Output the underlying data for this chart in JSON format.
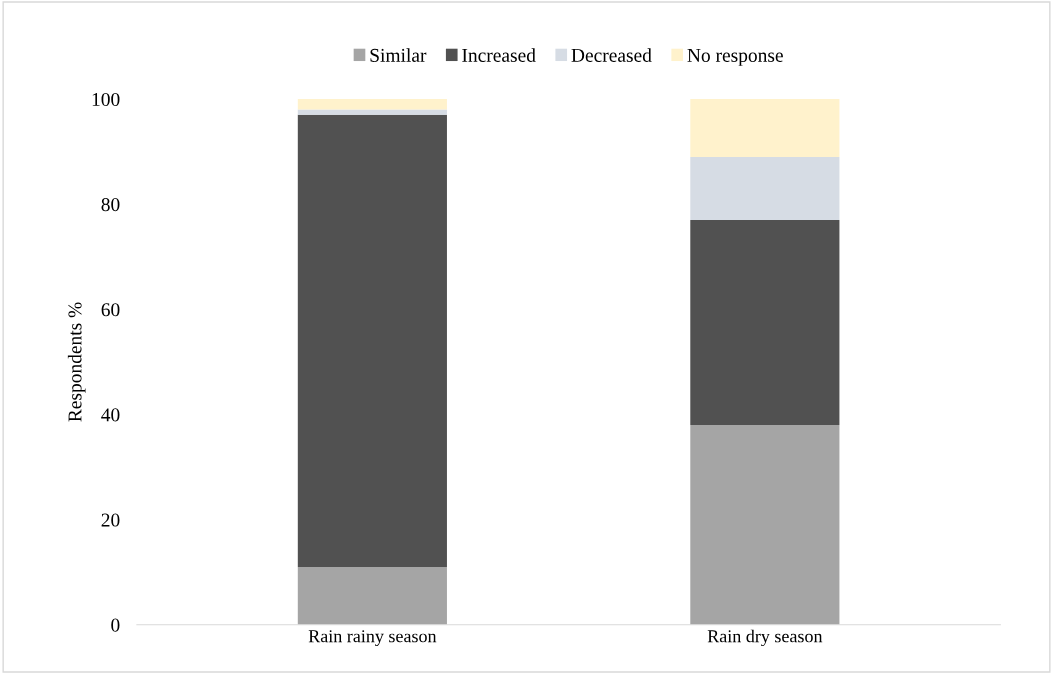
{
  "chart_data": {
    "type": "bar",
    "stacked": true,
    "ylabel": "Respondents %",
    "categories": [
      "Rain rainy season",
      "Rain dry season"
    ],
    "series": [
      {
        "name": "Similar",
        "color": "#a5a5a5",
        "values": [
          11,
          38
        ]
      },
      {
        "name": "Increased",
        "color": "#515151",
        "values": [
          86,
          39
        ]
      },
      {
        "name": "Decreased",
        "color": "#d6dce4",
        "values": [
          1,
          12
        ]
      },
      {
        "name": "No response",
        "color": "#fff2cc",
        "values": [
          2,
          11
        ]
      }
    ],
    "ylim": [
      0,
      100
    ],
    "yticks": [
      0,
      20,
      40,
      60,
      80,
      100
    ],
    "grid": false,
    "legend": "top"
  }
}
